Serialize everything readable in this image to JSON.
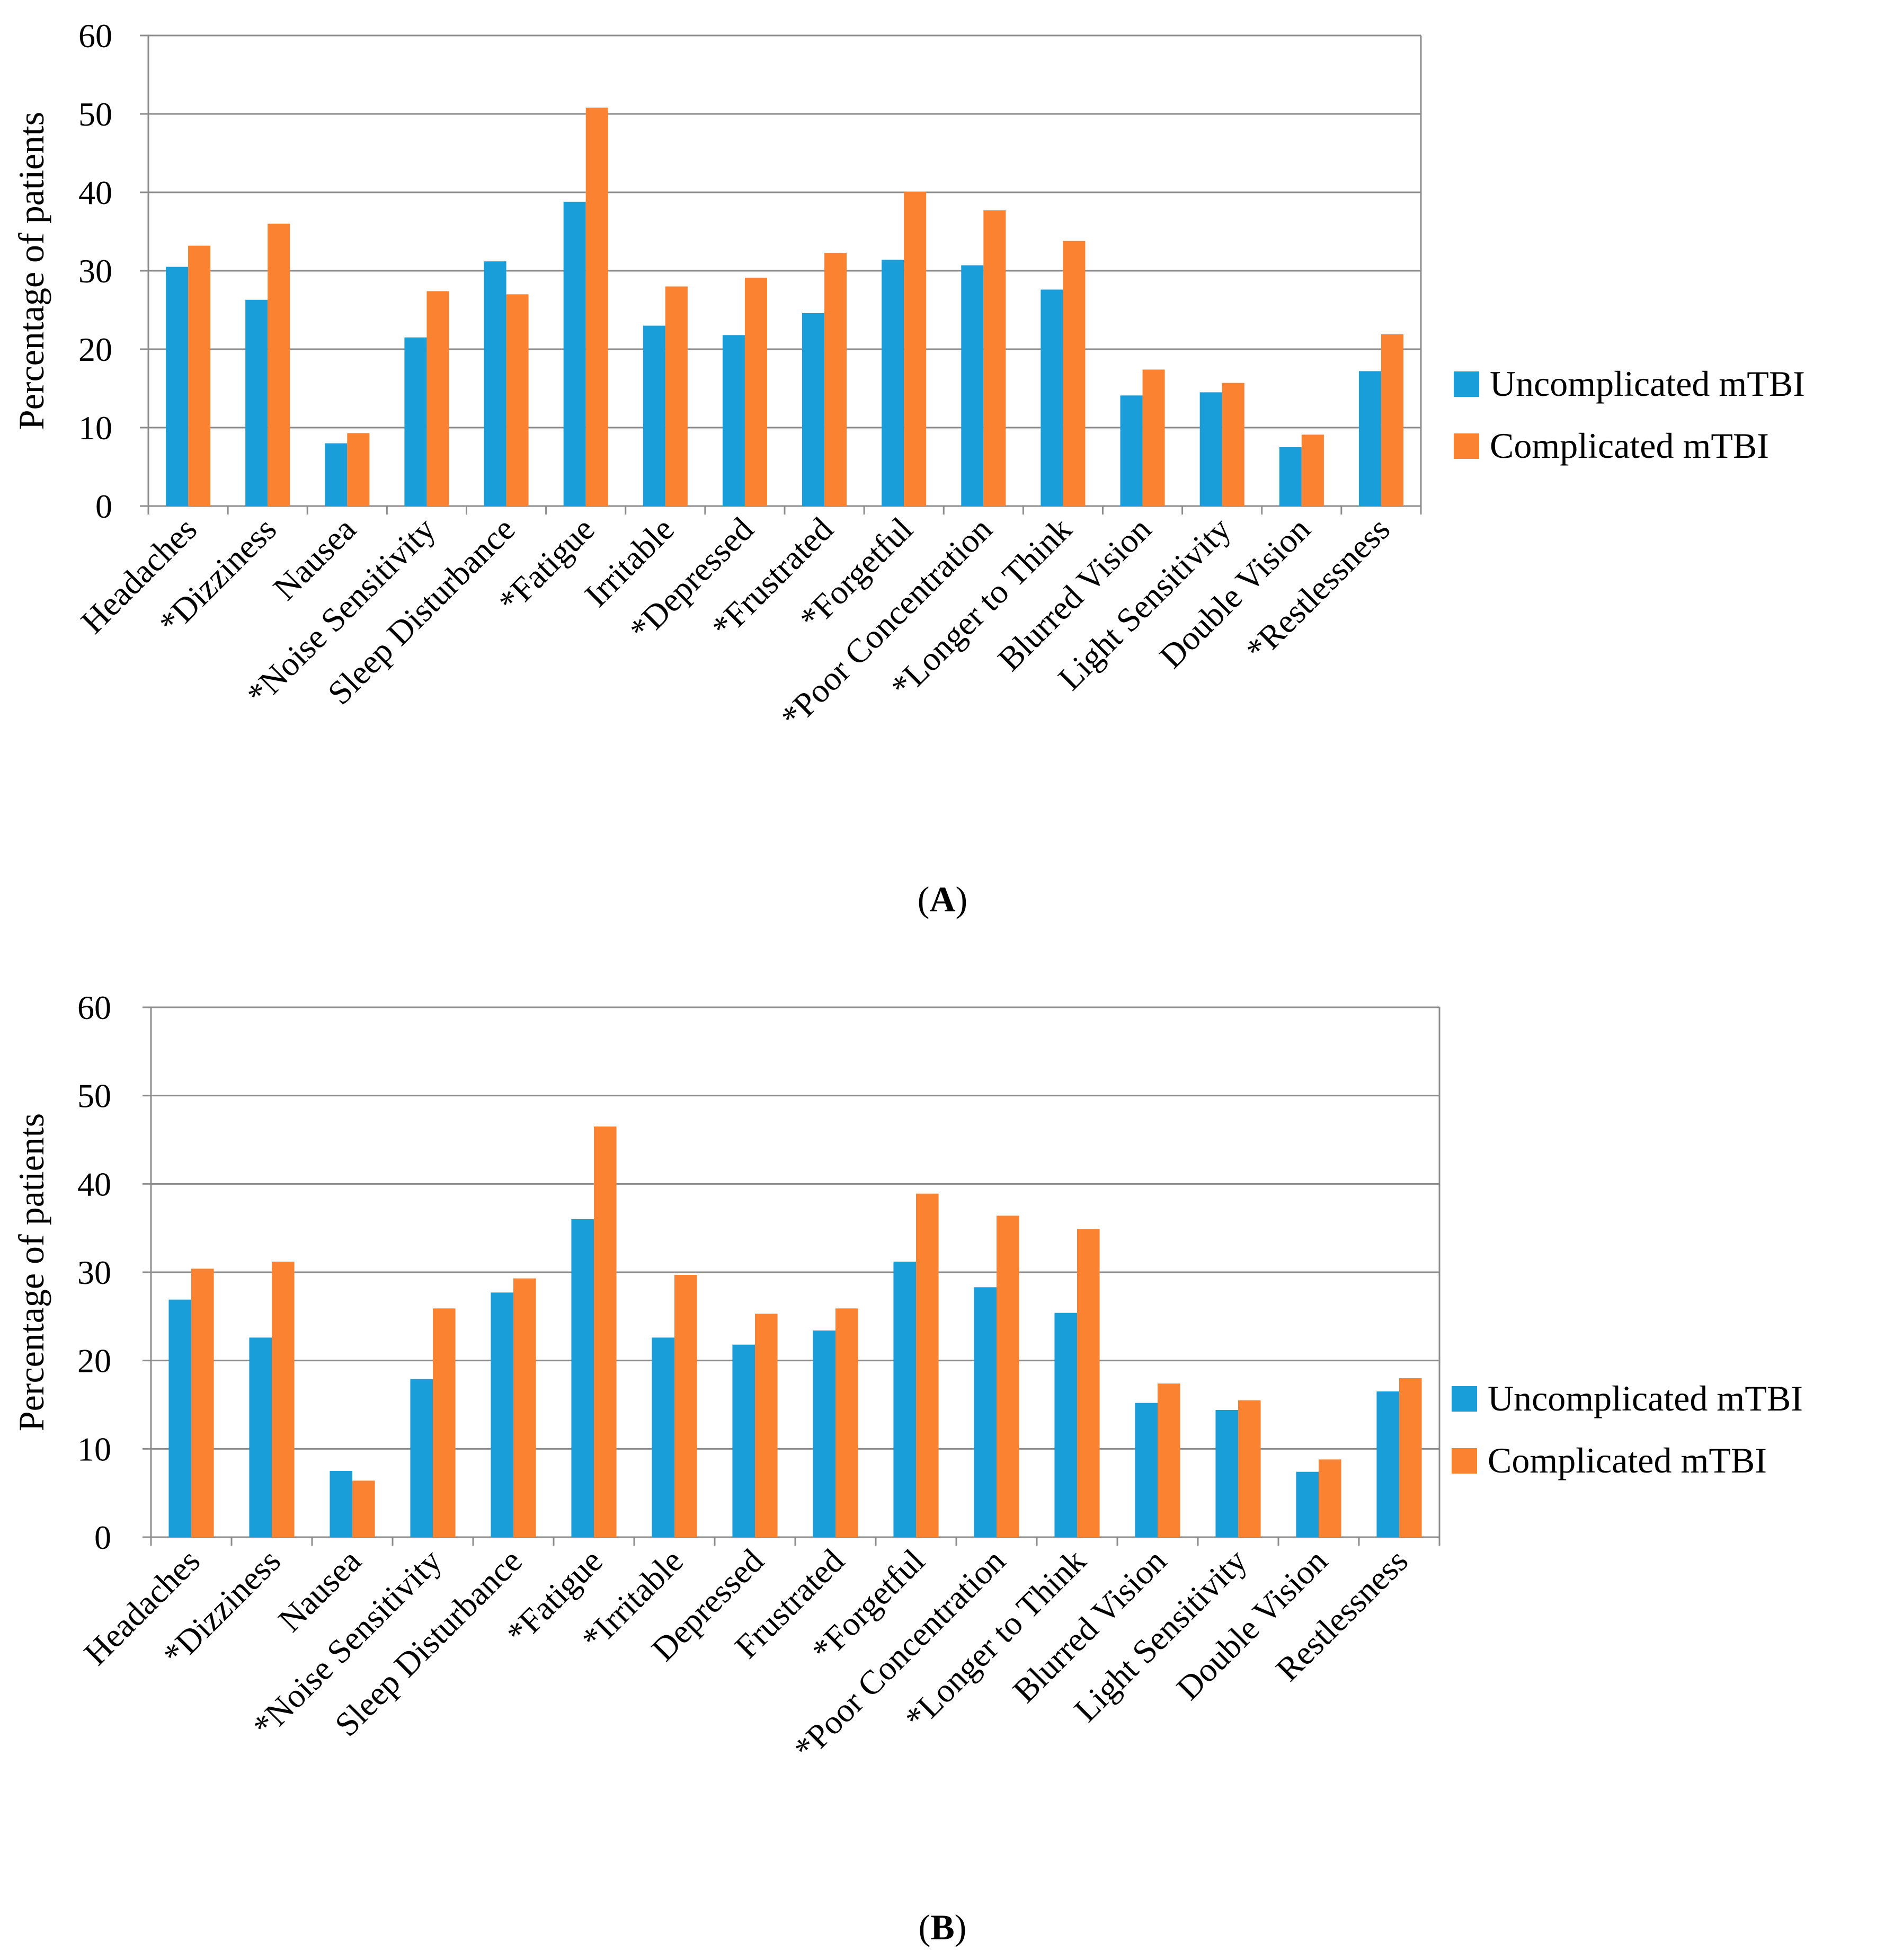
{
  "chart_data": [
    {
      "type": "bar",
      "panel_label": "(A)",
      "panel_letter": "A",
      "ylabel": "Percentage of patients",
      "ylim": [
        0,
        60
      ],
      "yticks": [
        0,
        10,
        20,
        30,
        40,
        50,
        60
      ],
      "grid": true,
      "legend_position": "right",
      "categories": [
        "Headaches",
        "*Dizziness",
        "Nausea",
        "*Noise Sensitivity",
        "Sleep Disturbance",
        "*Fatigue",
        "Irritable",
        "*Depressed",
        "*Frustrated",
        "*Forgetful",
        "*Poor Concentration",
        "*Longer to Think",
        "Blurred Vision",
        "Light Sensitivity",
        "Double Vision",
        "*Restlessness"
      ],
      "series": [
        {
          "name": "Uncomplicated mTBI",
          "color": "#1a9ed9",
          "values": [
            30.5,
            26.3,
            8.0,
            21.5,
            31.2,
            38.8,
            23.0,
            21.8,
            24.6,
            31.4,
            30.7,
            27.6,
            14.1,
            14.5,
            7.5,
            17.2
          ]
        },
        {
          "name": "Complicated mTBI",
          "color": "#fb8230",
          "values": [
            33.2,
            36.0,
            9.3,
            27.4,
            27.0,
            50.8,
            28.0,
            29.1,
            32.3,
            40.1,
            37.7,
            33.8,
            17.4,
            15.7,
            9.1,
            21.9
          ]
        }
      ]
    },
    {
      "type": "bar",
      "panel_label": "(B)",
      "panel_letter": "B",
      "ylabel": "Percentage of patients",
      "ylim": [
        0,
        60
      ],
      "yticks": [
        0,
        10,
        20,
        30,
        40,
        50,
        60
      ],
      "grid": true,
      "legend_position": "right",
      "categories": [
        "Headaches",
        "*Dizziness",
        "Nausea",
        "*Noise Sensitivity",
        "Sleep Disturbance",
        "*Fatigue",
        "*Irritable",
        "Depressed",
        "Frustrated",
        "*Forgetful",
        "*Poor Concentration",
        "*Longer to Think",
        "Blurred Vision",
        "Light Sensitivity",
        "Double Vision",
        "Restlessness"
      ],
      "series": [
        {
          "name": "Uncomplicated mTBI",
          "color": "#1a9ed9",
          "values": [
            26.9,
            22.6,
            7.5,
            17.9,
            27.7,
            36.0,
            22.6,
            21.8,
            23.4,
            31.2,
            28.3,
            25.4,
            15.2,
            14.4,
            7.4,
            16.5
          ]
        },
        {
          "name": "Complicated mTBI",
          "color": "#fb8230",
          "values": [
            30.4,
            31.2,
            6.4,
            25.9,
            29.3,
            46.5,
            29.7,
            25.3,
            25.9,
            38.9,
            36.4,
            34.9,
            17.4,
            15.5,
            8.8,
            18.0
          ]
        }
      ]
    }
  ]
}
